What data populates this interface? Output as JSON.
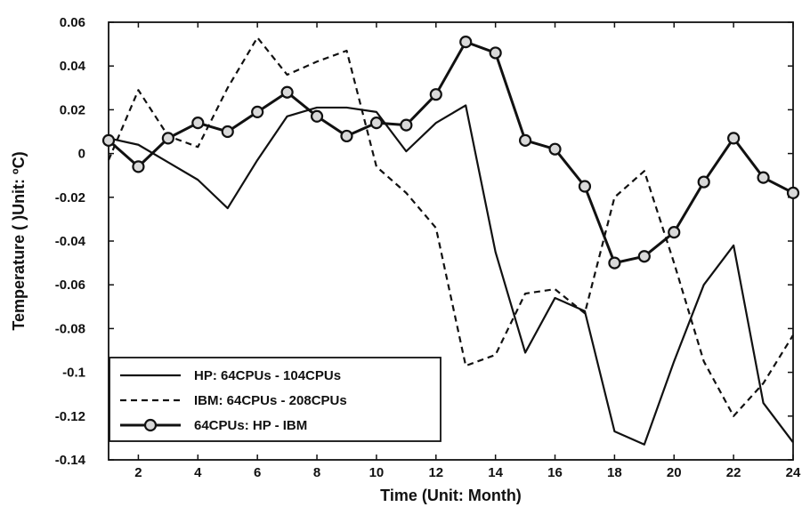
{
  "chart_data": {
    "type": "line",
    "title": "",
    "xlabel": "Time (Unit: Month)",
    "ylabel": "Temperature ( )Unit: ºC)",
    "xlim": [
      1,
      24
    ],
    "ylim": [
      -0.14,
      0.06
    ],
    "xticks": [
      2,
      4,
      6,
      8,
      10,
      12,
      14,
      16,
      18,
      20,
      22,
      24
    ],
    "xtick_labels": [
      "2",
      "4",
      "6",
      "8",
      "10",
      "12",
      "14",
      "16",
      "18",
      "20",
      "22",
      "24"
    ],
    "yticks": [
      -0.14,
      -0.12,
      -0.1,
      -0.08,
      -0.06,
      -0.04,
      -0.02,
      0,
      0.02,
      0.04,
      0.06
    ],
    "ytick_labels": [
      "-0.14",
      "-0.12",
      "-0.1",
      "-0.08",
      "-0.06",
      "-0.04",
      "-0.02",
      "0",
      "0.02",
      "0.04",
      "0.06"
    ],
    "grid": false,
    "legend_position": "bottom-left",
    "x": [
      1,
      2,
      3,
      4,
      5,
      6,
      7,
      8,
      9,
      10,
      11,
      12,
      13,
      14,
      15,
      16,
      17,
      18,
      19,
      20,
      21,
      22,
      23,
      24
    ],
    "series": [
      {
        "name": "HP: 64CPUs - 104CPUs",
        "style": "solid",
        "marker": "none",
        "color": "#111111",
        "values": [
          0.007,
          0.004,
          -0.004,
          -0.012,
          -0.025,
          -0.003,
          0.017,
          0.021,
          0.021,
          0.019,
          0.001,
          0.014,
          0.022,
          -0.045,
          -0.091,
          -0.066,
          -0.072,
          -0.127,
          -0.133,
          -0.095,
          -0.06,
          -0.042,
          -0.114,
          -0.132
        ]
      },
      {
        "name": "IBM: 64CPUs - 208CPUs",
        "style": "dashed",
        "marker": "none",
        "color": "#111111",
        "values": [
          -0.003,
          0.029,
          0.008,
          0.003,
          0.03,
          0.053,
          0.036,
          0.042,
          0.047,
          -0.006,
          -0.018,
          -0.034,
          -0.097,
          -0.092,
          -0.064,
          -0.062,
          -0.073,
          -0.02,
          -0.008,
          -0.05,
          -0.095,
          -0.12,
          -0.105,
          -0.083
        ]
      },
      {
        "name": "64CPUs: HP - IBM",
        "style": "solid-thick",
        "marker": "circle",
        "color": "#111111",
        "values": [
          0.006,
          -0.006,
          0.007,
          0.014,
          0.01,
          0.019,
          0.028,
          0.017,
          0.008,
          0.014,
          0.013,
          0.027,
          0.051,
          0.046,
          0.006,
          0.002,
          -0.015,
          -0.05,
          -0.047,
          -0.036,
          -0.013,
          0.007,
          -0.011,
          -0.018
        ]
      }
    ]
  }
}
